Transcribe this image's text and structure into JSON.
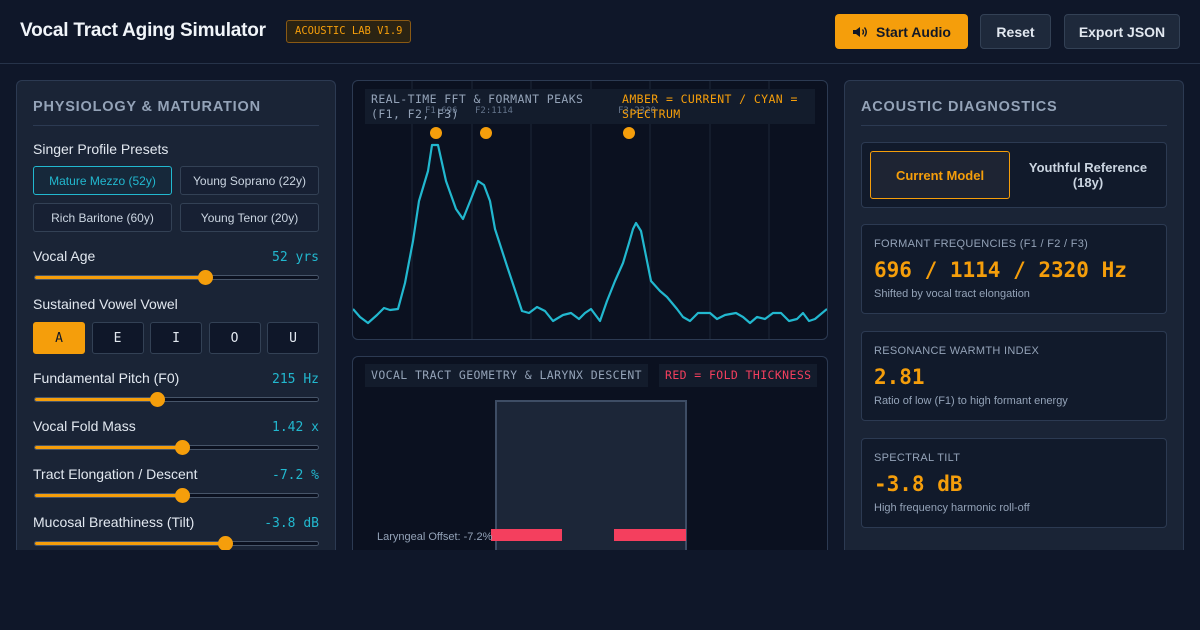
{
  "header": {
    "title": "Vocal Tract Aging Simulator",
    "badge": "ACOUSTIC LAB V1.9",
    "start_label": "Start Audio",
    "reset_label": "Reset",
    "export_label": "Export JSON"
  },
  "physiology": {
    "title": "PHYSIOLOGY & MATURATION",
    "presets_label": "Singer Profile Presets",
    "presets": [
      "Mature Mezzo (52y)",
      "Young Soprano (22y)",
      "Rich Baritone (60y)",
      "Young Tenor (20y)"
    ],
    "active_preset": 0,
    "vocal_age": {
      "label": "Vocal Age",
      "value": "52 yrs",
      "level": 0.6
    },
    "vowel": {
      "label": "Sustained Vowel Vowel",
      "options": [
        "A",
        "E",
        "I",
        "O",
        "U"
      ],
      "active": 0
    },
    "pitch": {
      "label": "Fundamental Pitch (F0)",
      "value": "215 Hz",
      "level": 0.43
    },
    "fold_mass": {
      "label": "Vocal Fold Mass",
      "value": "1.42 x",
      "level": 0.52
    },
    "elongation": {
      "label": "Tract Elongation / Descent",
      "value": "-7.2 %",
      "level": 0.52
    },
    "breathiness": {
      "label": "Mucosal Breathiness (Tilt)",
      "value": "-3.8 dB",
      "level": 0.67
    }
  },
  "fft": {
    "caption": "REAL-TIME FFT & FORMANT PEAKS (F1, F2, F3)",
    "legend": "AMBER = CURRENT / CYAN = SPECTRUM",
    "peak_labels": [
      "F1:696",
      "F2:1114",
      "F3:2320"
    ],
    "formants_hz": [
      696,
      1114,
      2320
    ],
    "colors": {
      "spectrum": "#22b8cf",
      "peaks": "#f59e0b"
    }
  },
  "geometry": {
    "caption": "VOCAL TRACT GEOMETRY & LARYNX DESCENT",
    "legend": "RED = FOLD THICKNESS",
    "offset_label": "Laryngeal Offset: -7.2%",
    "colors": {
      "fold": "#f43f5e"
    }
  },
  "diagnostics": {
    "title": "ACOUSTIC DIAGNOSTICS",
    "toggle": [
      "Current Model",
      "Youthful Reference (18y)"
    ],
    "cards": [
      {
        "label": "FORMANT FREQUENCIES (F1 / F2 / F3)",
        "value": "696 / 1114 / 2320 Hz",
        "desc": "Shifted by vocal tract elongation"
      },
      {
        "label": "RESONANCE WARMTH INDEX",
        "value": "2.81",
        "desc": "Ratio of low (F1) to high formant energy"
      },
      {
        "label": "SPECTRAL TILT",
        "value": "-3.8 dB",
        "desc": "High frequency harmonic roll-off"
      }
    ]
  }
}
